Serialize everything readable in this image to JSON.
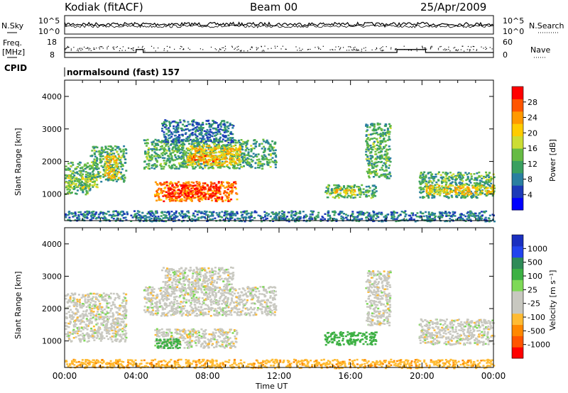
{
  "header": {
    "station": "Kodiak (fitACF)",
    "beam": "Beam 00",
    "date": "25/Apr/2009"
  },
  "top_panel": {
    "left_label": "N.Sky",
    "right_label": "N.Search",
    "left_ticks": [
      "10^5",
      "10^0"
    ],
    "right_ticks": [
      "10^5",
      "10^0"
    ]
  },
  "freq_panel": {
    "left_label_line1": "Freq.",
    "left_label_line2": "[MHz]",
    "left_ticks": [
      "18",
      "8"
    ],
    "right_label": "Nave",
    "right_ticks": [
      "60",
      "0"
    ],
    "cpid_label": "CPID",
    "cpid_value": "normalsound (fast) 157"
  },
  "axes": {
    "ylabel": "Slant Range [km]",
    "xlabel": "Time UT",
    "x_ticks": [
      "00:00",
      "04:00",
      "08:00",
      "12:00",
      "16:00",
      "20:00",
      "00:00"
    ],
    "y_ticks": [
      "1000",
      "2000",
      "3000",
      "4000"
    ]
  },
  "power_scale": {
    "label": "Power [dB]",
    "ticks": [
      "4",
      "8",
      "12",
      "16",
      "20",
      "24",
      "28"
    ],
    "colors": [
      "#0000ff",
      "#1c3ab8",
      "#2a7fa0",
      "#3aa060",
      "#66bb44",
      "#ccdd33",
      "#ffcc00",
      "#ff9900",
      "#ff5500",
      "#ff0000"
    ]
  },
  "velocity_scale": {
    "label": "Velocity [m s⁻¹]",
    "ticks": [
      "1000",
      "500",
      "100",
      "25",
      "-25",
      "-100",
      "-500",
      "-1000"
    ],
    "colors": [
      "#1a2fbf",
      "#2244ee",
      "#2e8b57",
      "#3cb043",
      "#7ed957",
      "#c8c8c0",
      "#c8c8c0",
      "#ffbb33",
      "#ff8800",
      "#ff5500",
      "#ff0000"
    ]
  },
  "chart_data": {
    "type": "heatmap",
    "x_range_hours": [
      0,
      24
    ],
    "y_range_km": [
      180,
      4500
    ],
    "power_regions": [
      {
        "t": [
          0.0,
          1.4
        ],
        "r": [
          1000,
          2000
        ],
        "db": 12
      },
      {
        "t": [
          0.0,
          1.8
        ],
        "r": [
          1200,
          1600
        ],
        "db": 16
      },
      {
        "t": [
          1.4,
          3.4
        ],
        "r": [
          1400,
          2500
        ],
        "db": 12
      },
      {
        "t": [
          2.2,
          3.0
        ],
        "r": [
          1500,
          2200
        ],
        "db": 20
      },
      {
        "t": [
          5.0,
          9.6
        ],
        "r": [
          800,
          1400
        ],
        "db": 24
      },
      {
        "t": [
          5.6,
          8.6
        ],
        "r": [
          900,
          1300
        ],
        "db": 28
      },
      {
        "t": [
          4.4,
          11.8
        ],
        "r": [
          1800,
          2700
        ],
        "db": 12
      },
      {
        "t": [
          6.8,
          9.8
        ],
        "r": [
          1900,
          2500
        ],
        "db": 20
      },
      {
        "t": [
          7.0,
          8.6
        ],
        "r": [
          2000,
          2200
        ],
        "db": 24
      },
      {
        "t": [
          5.4,
          9.4
        ],
        "r": [
          2600,
          3300
        ],
        "db": 8
      },
      {
        "t": [
          14.5,
          17.4
        ],
        "r": [
          900,
          1300
        ],
        "db": 12
      },
      {
        "t": [
          15.0,
          16.2
        ],
        "r": [
          1000,
          1200
        ],
        "db": 20
      },
      {
        "t": [
          16.8,
          18.2
        ],
        "r": [
          1500,
          3200
        ],
        "db": 12
      },
      {
        "t": [
          19.8,
          24.0
        ],
        "r": [
          900,
          1700
        ],
        "db": 12
      },
      {
        "t": [
          20.2,
          24.0
        ],
        "r": [
          1000,
          1300
        ],
        "db": 20
      },
      {
        "t": [
          0.0,
          24.0
        ],
        "r": [
          180,
          500
        ],
        "db": 8
      }
    ],
    "velocity_regions": [
      {
        "t": [
          0.0,
          3.4
        ],
        "r": [
          1000,
          2500
        ],
        "v": 0
      },
      {
        "t": [
          4.4,
          11.8
        ],
        "r": [
          1800,
          2700
        ],
        "v": 0
      },
      {
        "t": [
          5.0,
          9.6
        ],
        "r": [
          800,
          1400
        ],
        "v": 0
      },
      {
        "t": [
          5.0,
          6.4
        ],
        "r": [
          800,
          1100
        ],
        "v": 150
      },
      {
        "t": [
          5.4,
          9.4
        ],
        "r": [
          2600,
          3300
        ],
        "v": 0
      },
      {
        "t": [
          14.5,
          17.4
        ],
        "r": [
          900,
          1300
        ],
        "v": 150
      },
      {
        "t": [
          16.8,
          18.2
        ],
        "r": [
          1500,
          3200
        ],
        "v": 0
      },
      {
        "t": [
          19.8,
          24.0
        ],
        "r": [
          900,
          1700
        ],
        "v": 0
      },
      {
        "t": [
          0.0,
          24.0
        ],
        "r": [
          180,
          450
        ],
        "v": -80
      }
    ],
    "nsky_level": 10000,
    "freq_mhz_base": 10.5,
    "freq_mhz_steps": [
      {
        "t": [
          4.0,
          4.4
        ],
        "mhz": 12
      },
      {
        "t": [
          18.6,
          20.2
        ],
        "mhz": 12
      }
    ],
    "xlabel": "Time UT",
    "ylabel": "Slant Range [km]"
  }
}
